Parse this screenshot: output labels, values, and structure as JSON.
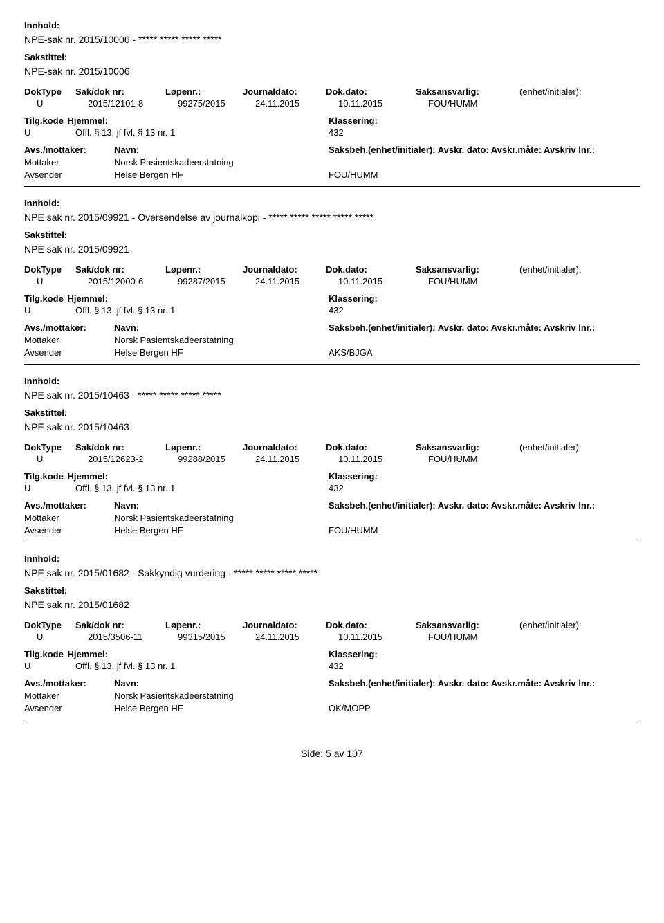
{
  "labels": {
    "innhold": "Innhold:",
    "sakstittel": "Sakstittel:",
    "doktype": "DokType",
    "sakdok": "Sak/dok nr:",
    "lopenr": "Løpenr.:",
    "journaldato": "Journaldato:",
    "dokdato": "Dok.dato:",
    "saksansvarlig": "Saksansvarlig:",
    "enhet": "(enhet/initialer):",
    "tilgkode": "Tilg.kode",
    "hjemmel": "Hjemmel:",
    "klassering": "Klassering:",
    "avsmottaker": "Avs./mottaker:",
    "navn": "Navn:",
    "saksbeh": "Saksbeh.(enhet/initialer): Avskr. dato:  Avskr.måte:  Avskriv lnr.:"
  },
  "records": [
    {
      "innhold": "NPE-sak nr. 2015/10006 - ***** ***** ***** *****",
      "sakstittel": "NPE-sak nr. 2015/10006",
      "doktype": "U",
      "sakdok": "2015/12101-8",
      "lopenr": "99275/2015",
      "journaldato": "24.11.2015",
      "dokdato": "10.11.2015",
      "saksans": "FOU/HUMM",
      "tilgkode": "U",
      "hjemmel": "Offl. § 13, jf fvl. § 13 nr. 1",
      "klassering": "432",
      "parties": [
        {
          "role": "Mottaker",
          "navn": "Norsk Pasientskadeerstatning",
          "sb": ""
        },
        {
          "role": "Avsender",
          "navn": "Helse Bergen HF",
          "sb": "FOU/HUMM"
        }
      ]
    },
    {
      "innhold": "NPE sak nr. 2015/09921 - Oversendelse av journalkopi -  ***** ***** ***** ***** *****",
      "sakstittel": "NPE sak nr. 2015/09921",
      "doktype": "U",
      "sakdok": "2015/12000-6",
      "lopenr": "99287/2015",
      "journaldato": "24.11.2015",
      "dokdato": "10.11.2015",
      "saksans": "FOU/HUMM",
      "tilgkode": "U",
      "hjemmel": "Offl. § 13, jf fvl. § 13 nr. 1",
      "klassering": "432",
      "parties": [
        {
          "role": "Mottaker",
          "navn": "Norsk Pasientskadeerstatning",
          "sb": ""
        },
        {
          "role": "Avsender",
          "navn": "Helse Bergen HF",
          "sb": "AKS/BJGA"
        }
      ]
    },
    {
      "innhold": "NPE sak nr. 2015/10463 - ***** ***** ***** *****",
      "sakstittel": "NPE sak nr. 2015/10463",
      "doktype": "U",
      "sakdok": "2015/12623-2",
      "lopenr": "99288/2015",
      "journaldato": "24.11.2015",
      "dokdato": "10.11.2015",
      "saksans": "FOU/HUMM",
      "tilgkode": "U",
      "hjemmel": "Offl. § 13, jf fvl. § 13 nr. 1",
      "klassering": "432",
      "parties": [
        {
          "role": "Mottaker",
          "navn": "Norsk Pasientskadeerstatning",
          "sb": ""
        },
        {
          "role": "Avsender",
          "navn": "Helse Bergen HF",
          "sb": "FOU/HUMM"
        }
      ]
    },
    {
      "innhold": "NPE sak nr. 2015/01682 - Sakkyndig vurdering - ***** ***** ***** *****",
      "sakstittel": "NPE sak nr. 2015/01682",
      "doktype": "U",
      "sakdok": "2015/3506-11",
      "lopenr": "99315/2015",
      "journaldato": "24.11.2015",
      "dokdato": "10.11.2015",
      "saksans": "FOU/HUMM",
      "tilgkode": "U",
      "hjemmel": "Offl. § 13, jf fvl. § 13 nr. 1",
      "klassering": "432",
      "parties": [
        {
          "role": "Mottaker",
          "navn": "Norsk Pasientskadeerstatning",
          "sb": ""
        },
        {
          "role": "Avsender",
          "navn": "Helse Bergen HF",
          "sb": "OK/MOPP"
        }
      ]
    }
  ],
  "footer": "Side:  5 av 107"
}
